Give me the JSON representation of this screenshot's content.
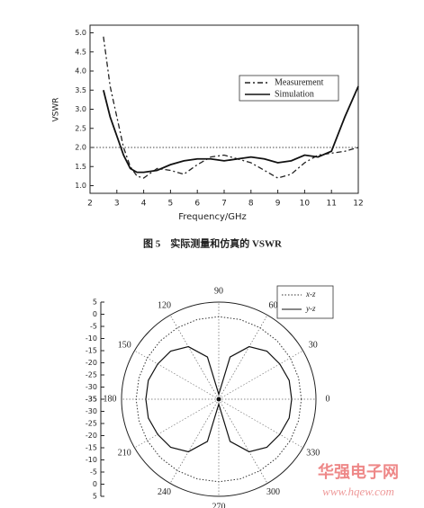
{
  "chart_data": [
    {
      "type": "line",
      "caption": "图 5　实际测量和仿真的 VSWR",
      "xlabel": "Frequency/GHz",
      "ylabel": "VSWR",
      "x": [
        2.5,
        2.75,
        3,
        3.25,
        3.5,
        3.75,
        4,
        4.5,
        5,
        5.5,
        6,
        6.5,
        7,
        7.5,
        8,
        8.5,
        9,
        9.5,
        10,
        10.5,
        11,
        11.5,
        12
      ],
      "series": [
        {
          "name": "Measurement",
          "color": "#222222",
          "style": "dash-dot",
          "values": [
            4.9,
            3.6,
            2.8,
            2.0,
            1.5,
            1.25,
            1.2,
            1.45,
            1.4,
            1.3,
            1.55,
            1.75,
            1.8,
            1.7,
            1.6,
            1.4,
            1.2,
            1.3,
            1.6,
            1.8,
            1.85,
            1.9,
            2.0
          ]
        },
        {
          "name": "Simulation",
          "color": "#111111",
          "style": "solid",
          "values": [
            3.5,
            2.8,
            2.3,
            1.8,
            1.45,
            1.35,
            1.35,
            1.4,
            1.55,
            1.65,
            1.7,
            1.7,
            1.65,
            1.7,
            1.75,
            1.7,
            1.6,
            1.65,
            1.8,
            1.75,
            1.9,
            2.8,
            3.6
          ]
        }
      ],
      "hline": 2,
      "xlim": [
        2,
        12
      ],
      "xticks": [
        2,
        3,
        4,
        5,
        6,
        7,
        8,
        9,
        10,
        11,
        12
      ],
      "ylim": [
        0.8,
        5.2
      ],
      "yticks": [
        {
          "value": 1,
          "label": "1.0"
        },
        1.5,
        {
          "value": 2,
          "label": "2.0"
        },
        2.5,
        {
          "value": 3,
          "label": "3.0"
        },
        3.5,
        {
          "value": 4,
          "label": "4.0"
        },
        4.5,
        {
          "value": 5,
          "label": "5.0"
        }
      ]
    },
    {
      "type": "polar",
      "theta": [
        0,
        15,
        30,
        45,
        60,
        75,
        90,
        105,
        120,
        135,
        150,
        165,
        180,
        195,
        210,
        225,
        240,
        255,
        270,
        285,
        300,
        315,
        330,
        345,
        360
      ],
      "series": [
        {
          "name": "x-z",
          "color": "#333333",
          "style": "dotted",
          "values": [
            -1,
            -1,
            -1,
            -1,
            -1,
            -1,
            -1,
            -1,
            -1,
            -1,
            -1,
            -1,
            -1,
            -1,
            -1,
            -1,
            -1,
            -1,
            -1,
            -1,
            -1,
            -1,
            -1,
            -1,
            -1
          ]
        },
        {
          "name": "y-z",
          "color": "#111111",
          "style": "solid",
          "values": [
            -5,
            -5,
            -6,
            -7,
            -10,
            -17,
            -33,
            -17,
            -10,
            -7,
            -6,
            -5,
            -5,
            -5,
            -6,
            -7,
            -10,
            -17,
            -33,
            -17,
            -10,
            -7,
            -6,
            -5,
            -5
          ]
        }
      ],
      "rlim": [
        -35,
        5
      ],
      "rticks": [
        5,
        0,
        -5,
        -10,
        -15,
        -20,
        -25,
        -30,
        -35
      ],
      "thetaticks": [
        0,
        30,
        60,
        90,
        120,
        150,
        180,
        210,
        240,
        270,
        300,
        330
      ]
    }
  ],
  "watermark": {
    "name": "华强电子网",
    "url": "www.hqew.com"
  }
}
